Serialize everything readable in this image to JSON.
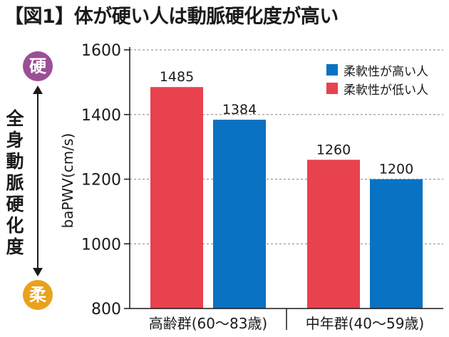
{
  "title": "【図1】体が硬い人は動脈硬化度が高い",
  "scale_indicator": {
    "top_label": "硬",
    "bottom_label": "柔",
    "vertical_text": "全身動脈硬化度",
    "top_color": "#9b4f96",
    "bottom_color": "#e8a21c"
  },
  "colors": {
    "low_flexibility": "#e8424e",
    "high_flexibility": "#0a72c2"
  },
  "chart_data": {
    "type": "bar",
    "title": "",
    "xlabel": "",
    "ylabel": "baPWV(cm/s)",
    "ylim": [
      800,
      1600
    ],
    "yticks": [
      800,
      1000,
      1200,
      1400,
      1600
    ],
    "grid": true,
    "legend_position": "top-right",
    "categories": [
      "高齢群(60〜83歳)",
      "中年群(40〜59歳)"
    ],
    "series": [
      {
        "name": "柔軟性が低い人",
        "values": [
          1485,
          1260
        ],
        "color": "#e8424e"
      },
      {
        "name": "柔軟性が高い人",
        "values": [
          1384,
          1200
        ],
        "color": "#0a72c2"
      }
    ],
    "legend_order": [
      1,
      0
    ]
  }
}
